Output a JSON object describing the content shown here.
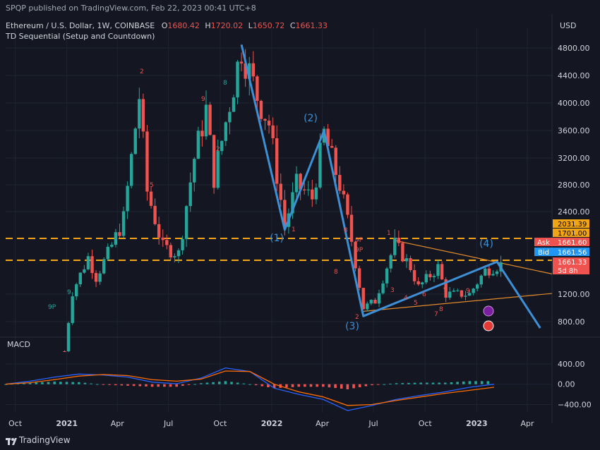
{
  "header": {
    "published": "SPQP published on TradingView.com, Feb 22, 2023 00:41 UTC+8",
    "symbol": "Ethereum / U.S. Dollar, 1W, COINBASE",
    "ohlc": {
      "o_label": "O",
      "o": "1680.42",
      "h_label": "H",
      "h": "1720.02",
      "l_label": "L",
      "l": "1650.72",
      "c_label": "C",
      "c": "1661.33"
    },
    "indicator": "TD Sequential (Setup and Countdown)",
    "currency": "USD"
  },
  "footer": {
    "brand": "TradingView"
  },
  "colors": {
    "background": "#141722",
    "up": "#26a69a",
    "down": "#ef5350",
    "wave": "#3d8fd6",
    "trend": "#e38a2c",
    "level": "#f2a417",
    "macd_line": "#2962ff",
    "signal_line": "#ff6d00"
  },
  "chart_data": [
    {
      "type": "candlestick",
      "title": "Ethereum / U.S. Dollar, 1W, COINBASE",
      "ylim": [
        600,
        5100
      ],
      "y_ticks": [
        "4800.00",
        "4400.00",
        "4000.00",
        "3600.00",
        "3200.00",
        "2800.00",
        "2400.00",
        "1200.00",
        "800.00"
      ],
      "x_ticks": [
        "Oct",
        "2021",
        "Apr",
        "Jul",
        "Oct",
        "2022",
        "Apr",
        "Jul",
        "Oct",
        "2023",
        "Apr"
      ],
      "x_tick_dates": [
        "2020-10-01",
        "2021-01-01",
        "2021-04-01",
        "2021-07-01",
        "2021-10-01",
        "2022-01-01",
        "2022-04-01",
        "2022-07-01",
        "2022-10-01",
        "2023-01-01",
        "2023-04-01"
      ],
      "series": [
        {
          "date": "2020-12-28",
          "close": 380
        },
        {
          "date": "2021-01-11",
          "close": 1230
        },
        {
          "date": "2021-02-08",
          "close": 1750
        },
        {
          "date": "2021-02-22",
          "close": 1450
        },
        {
          "date": "2021-03-15",
          "close": 1800
        },
        {
          "date": "2021-04-12",
          "close": 2300
        },
        {
          "date": "2021-05-10",
          "close": 4100
        },
        {
          "date": "2021-05-24",
          "close": 2700
        },
        {
          "date": "2021-06-21",
          "close": 1900
        },
        {
          "date": "2021-07-19",
          "close": 1800
        },
        {
          "date": "2021-08-16",
          "close": 3200
        },
        {
          "date": "2021-09-06",
          "close": 3900
        },
        {
          "date": "2021-09-20",
          "close": 2900
        },
        {
          "date": "2021-10-18",
          "close": 4000
        },
        {
          "date": "2021-11-08",
          "close": 4800
        },
        {
          "date": "2021-12-06",
          "close": 4100
        },
        {
          "date": "2021-12-27",
          "close": 3700
        },
        {
          "date": "2022-01-24",
          "close": 2200
        },
        {
          "date": "2022-02-14",
          "close": 2800
        },
        {
          "date": "2022-03-14",
          "close": 2600
        },
        {
          "date": "2022-04-04",
          "close": 3550
        },
        {
          "date": "2022-05-02",
          "close": 2800
        },
        {
          "date": "2022-05-23",
          "close": 2000
        },
        {
          "date": "2022-06-13",
          "close": 1000
        },
        {
          "date": "2022-07-04",
          "close": 1100
        },
        {
          "date": "2022-08-08",
          "close": 1950
        },
        {
          "date": "2022-09-05",
          "close": 1600
        },
        {
          "date": "2022-09-19",
          "close": 1300
        },
        {
          "date": "2022-10-24",
          "close": 1600
        },
        {
          "date": "2022-11-07",
          "close": 1200
        },
        {
          "date": "2022-12-19",
          "close": 1200
        },
        {
          "date": "2023-01-16",
          "close": 1550
        },
        {
          "date": "2023-02-20",
          "close": 1661
        }
      ],
      "price_labels": [
        {
          "value": 2031.39,
          "text": "2031.39",
          "color": "#f2a417"
        },
        {
          "value": 1701.0,
          "text": "1701.00",
          "color": "#f2a417"
        },
        {
          "value": 1661.6,
          "text": "Ask",
          "value_text": "1661.60",
          "color": "#ef5350"
        },
        {
          "value": 1661.56,
          "text": "Bid",
          "value_text": "1661.56",
          "color": "#2196f3"
        },
        {
          "value": 1661.33,
          "text": "1661.33",
          "countdown": "5d 8h",
          "color": "#ef5350"
        }
      ],
      "horizontal_levels": [
        2031.39,
        1701.0
      ],
      "wave_labels": [
        "(1)",
        "(2)",
        "(3)",
        "(4)"
      ],
      "wave_path": [
        {
          "date": "2021-11-08",
          "price": 4850
        },
        {
          "date": "2022-01-24",
          "price": 2150
        },
        {
          "date": "2022-04-04",
          "price": 3600
        },
        {
          "date": "2022-06-13",
          "price": 880
        },
        {
          "date": "2023-02-06",
          "price": 1680
        },
        {
          "date": "2023-04-24",
          "price": 710
        }
      ],
      "td_labels": [
        "9P",
        "9",
        "2",
        "5",
        "8",
        "2",
        "9",
        "9P",
        "8",
        "9P",
        "8",
        "2",
        "3",
        "4",
        "5",
        "6",
        "7",
        "8",
        "9",
        "9",
        "1",
        "1"
      ]
    },
    {
      "type": "line",
      "title": "MACD",
      "ylim": [
        -560,
        760
      ],
      "y_ticks": [
        "400.00",
        "0.00",
        "−400.00"
      ],
      "series": [
        {
          "name": "MACD",
          "values": [
            0,
            60,
            140,
            200,
            180,
            140,
            40,
            10,
            120,
            320,
            250,
            -80,
            -200,
            -300,
            -520,
            -420,
            -300,
            -220,
            -150,
            -60,
            0
          ]
        },
        {
          "name": "Signal",
          "values": [
            0,
            30,
            90,
            160,
            190,
            170,
            90,
            60,
            100,
            260,
            250,
            0,
            -150,
            -250,
            -420,
            -400,
            -320,
            -250,
            -180,
            -120,
            -60
          ]
        }
      ]
    }
  ]
}
